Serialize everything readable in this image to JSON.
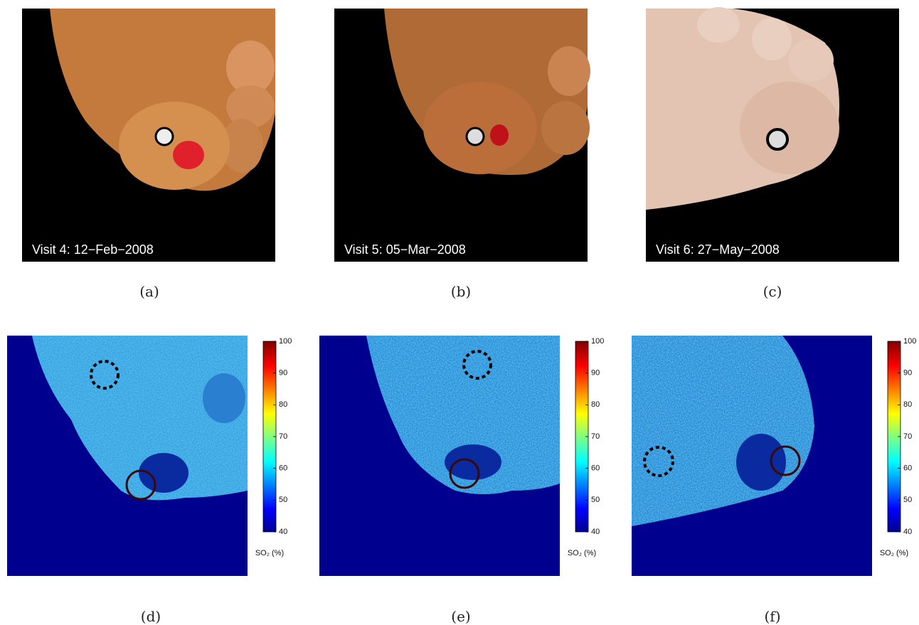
{
  "photos": [
    {
      "label": "Visit 4: 12−Feb−2008",
      "caption": "(a)"
    },
    {
      "label": "Visit 5: 05−Mar−2008",
      "caption": "(b)"
    },
    {
      "label": "Visit 6: 27−May−2008",
      "caption": "(c)"
    }
  ],
  "maps": [
    {
      "caption": "(d)",
      "colorbar": {
        "lim": [
          40,
          100
        ],
        "ticks": [
          40,
          50,
          60,
          70,
          80,
          90,
          100
        ],
        "label": "SO₂ (%)"
      }
    },
    {
      "caption": "(e)",
      "colorbar": {
        "lim": [
          40,
          100
        ],
        "ticks": [
          40,
          50,
          60,
          70,
          80,
          90,
          100
        ],
        "label": "SO₂ (%)"
      }
    },
    {
      "caption": "(f)",
      "colorbar": {
        "lim": [
          40,
          100
        ],
        "ticks": [
          40,
          50,
          60,
          70,
          80,
          90,
          100
        ],
        "label": "SO₂ (%)"
      }
    }
  ]
}
